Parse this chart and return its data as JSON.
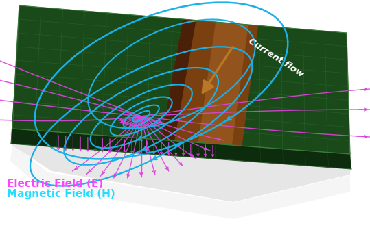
{
  "bg_color": "#ffffff",
  "pcb_top_color": "#1a4a1a",
  "pcb_side_bottom_color": "#0d2b0d",
  "pcb_side_left_color": "#143214",
  "grid_color": "#2d6b2d",
  "grid_alpha": 0.6,
  "conductor_color": "#7a4010",
  "conductor_dark": "#4a2008",
  "conductor_light": "#aa6828",
  "arrow_color": "#b87828",
  "current_text_color": "#ffffff",
  "magnetic_color": "#1ab0e8",
  "electric_color": "#dd44dd",
  "legend_e_color": "#ff44ff",
  "legend_h_color": "#22ddff",
  "shadow_color": "#b0b0b0",
  "legend_e": "Electric Field (E)",
  "legend_h": "Magnetic Field (H)",
  "current_label": "Current flow"
}
